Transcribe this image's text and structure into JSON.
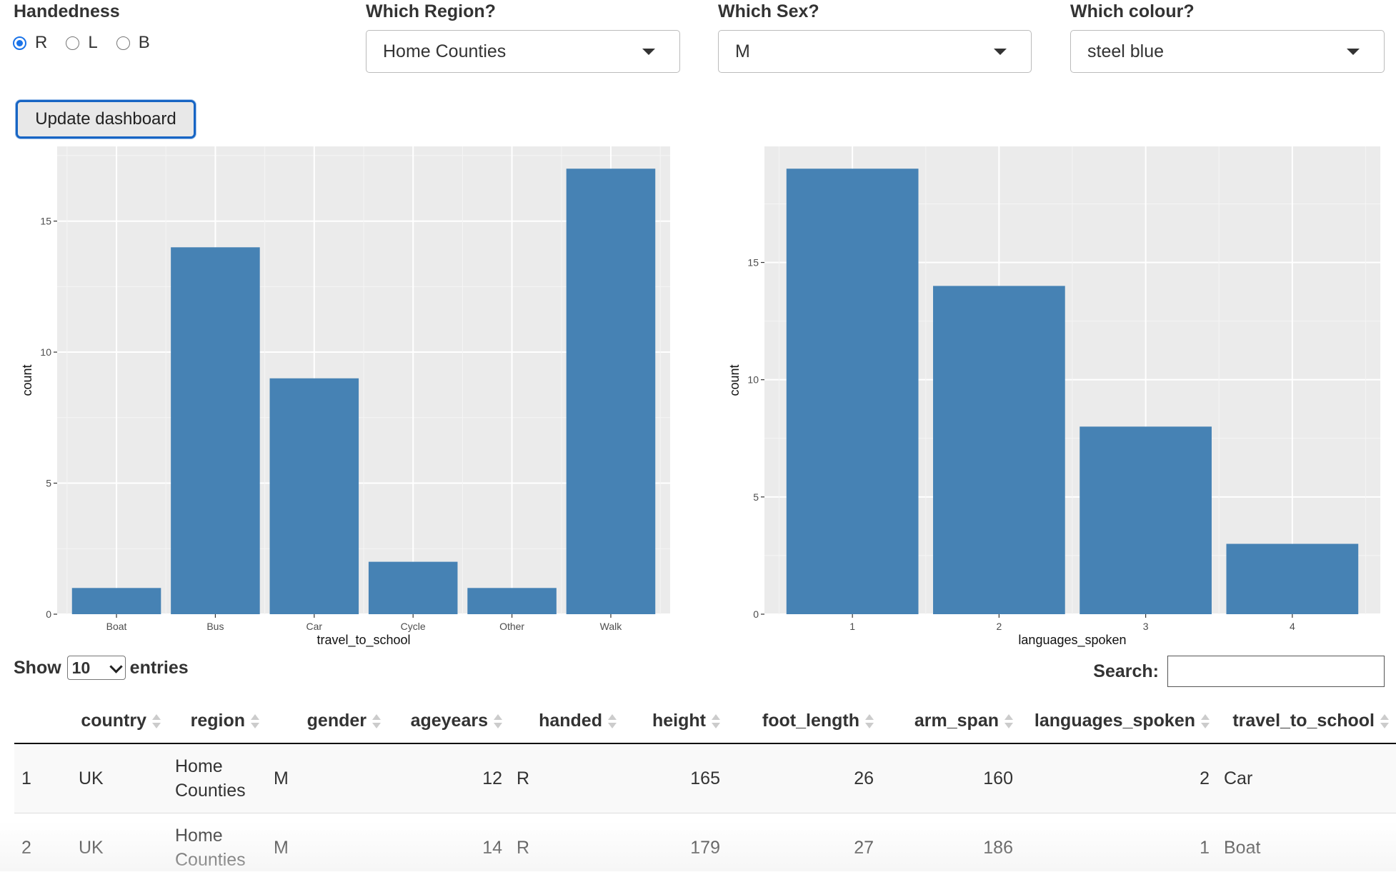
{
  "controls": {
    "handedness": {
      "label": "Handedness",
      "options": [
        "R",
        "L",
        "B"
      ],
      "selected": "R"
    },
    "region": {
      "label": "Which Region?",
      "value": "Home Counties"
    },
    "sex": {
      "label": "Which Sex?",
      "value": "M"
    },
    "colour": {
      "label": "Which colour?",
      "value": "steel blue"
    },
    "update_button": "Update dashboard"
  },
  "chart_data": [
    {
      "type": "bar",
      "categories": [
        "Boat",
        "Bus",
        "Car",
        "Cycle",
        "Other",
        "Walk"
      ],
      "values": [
        1,
        14,
        9,
        2,
        1,
        17
      ],
      "xlabel": "travel_to_school",
      "ylabel": "count",
      "ylim": [
        0,
        17.85
      ],
      "yticks": [
        0,
        5,
        10,
        15
      ],
      "bar_color": "#4682b4",
      "panel_color": "#ebebeb",
      "grid": true
    },
    {
      "type": "bar",
      "categories": [
        "1",
        "2",
        "3",
        "4"
      ],
      "values": [
        19,
        14,
        8,
        3
      ],
      "xlabel": "languages_spoken",
      "ylabel": "count",
      "ylim": [
        0,
        19.95
      ],
      "yticks": [
        0,
        5,
        10,
        15
      ],
      "bar_color": "#4682b4",
      "panel_color": "#ebebeb",
      "grid": true
    }
  ],
  "table": {
    "show_label": "Show",
    "entries_label": "entries",
    "page_length": "10",
    "search_label": "Search:",
    "columns": [
      "",
      "country",
      "region",
      "gender",
      "ageyears",
      "handed",
      "height",
      "foot_length",
      "arm_span",
      "languages_spoken",
      "travel_to_school"
    ],
    "rows": [
      [
        "1",
        "UK",
        "Home Counties",
        "M",
        "12",
        "R",
        "165",
        "26",
        "160",
        "2",
        "Car"
      ],
      [
        "2",
        "UK",
        "Home Counties",
        "M",
        "14",
        "R",
        "179",
        "27",
        "186",
        "1",
        "Boat"
      ]
    ]
  }
}
